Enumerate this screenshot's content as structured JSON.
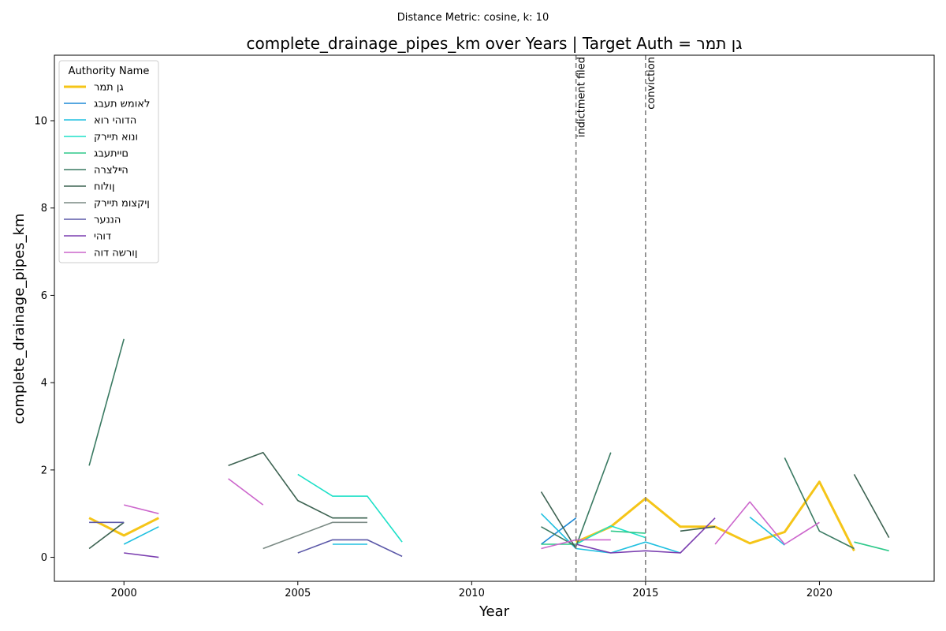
{
  "suptitle": "Distance Metric: cosine, k: 10",
  "title": "complete_drainage_pipes_km over Years | Target Auth = גן תמר",
  "chart_data": {
    "type": "line",
    "xlabel": "Year",
    "ylabel": "complete_drainage_pipes_km",
    "xlim": [
      1998.0,
      2023.3
    ],
    "ylim": [
      -0.55,
      11.5
    ],
    "xticks": [
      2000,
      2005,
      2010,
      2015,
      2020
    ],
    "yticks": [
      0,
      2,
      4,
      6,
      8,
      10
    ],
    "grid": false,
    "legend": {
      "title": "Authority Name",
      "placement": "top-left"
    },
    "events": [
      {
        "x": 2013,
        "label": "indictment filed"
      },
      {
        "x": 2015,
        "label": "conviction"
      }
    ],
    "series": [
      {
        "name": "גן תמר",
        "color": "#f5c518",
        "width": 3,
        "points": [
          [
            1999,
            0.9
          ],
          [
            2000,
            0.5
          ],
          [
            2001,
            0.9
          ],
          null,
          [
            2013,
            0.35
          ],
          [
            2014,
            0.7
          ],
          [
            2015,
            1.35
          ],
          [
            2016,
            0.7
          ],
          [
            2017,
            0.7
          ],
          [
            2018,
            0.32
          ],
          [
            2019,
            0.58
          ],
          [
            2020,
            1.73
          ],
          [
            2021,
            0.15
          ]
        ]
      },
      {
        "name": "לאומש תעבג",
        "color": "#1f8ad6",
        "width": 1.6,
        "points": [
          [
            2012,
            0.3
          ],
          [
            2013,
            0.9
          ]
        ]
      },
      {
        "name": "הדוהי רוא",
        "color": "#20c0e0",
        "width": 1.6,
        "points": [
          [
            2000,
            0.3
          ],
          [
            2001,
            0.7
          ],
          null,
          [
            2006,
            0.3
          ],
          [
            2007,
            0.3
          ],
          null,
          [
            2012,
            1.0
          ],
          [
            2013,
            0.2
          ],
          [
            2014,
            0.1
          ],
          [
            2015,
            0.35
          ],
          [
            2016,
            0.1
          ],
          null,
          [
            2018,
            0.92
          ],
          [
            2019,
            0.28
          ]
        ]
      },
      {
        "name": "ונוא תיירק",
        "color": "#1fe0c8",
        "width": 1.6,
        "points": [
          [
            2005,
            1.9
          ],
          [
            2006,
            1.4
          ],
          [
            2007,
            1.4
          ],
          [
            2008,
            0.35
          ],
          null,
          [
            2013,
            0.3
          ],
          [
            2014,
            0.72
          ],
          [
            2015,
            0.45
          ]
        ]
      },
      {
        "name": "םייתעבג",
        "color": "#2ec98a",
        "width": 1.6,
        "points": [
          [
            2012,
            0.3
          ],
          [
            2013,
            0.3
          ],
          null,
          [
            2014,
            0.6
          ],
          [
            2015,
            0.55
          ],
          null,
          [
            2021,
            0.35
          ],
          [
            2022,
            0.15
          ]
        ]
      },
      {
        "name": "הײלצרה",
        "color": "#3a7a62",
        "width": 1.6,
        "points": [
          [
            1999,
            2.1
          ],
          [
            2000,
            5.0
          ],
          null,
          [
            2012,
            0.7
          ],
          [
            2013,
            0.25
          ],
          [
            2014,
            2.4
          ],
          null,
          [
            2019,
            2.28
          ],
          [
            2020,
            0.6
          ],
          [
            2021,
            0.2
          ]
        ]
      },
      {
        "name": "ןולוח",
        "color": "#3d6352",
        "width": 1.6,
        "points": [
          [
            1999,
            0.2
          ],
          [
            2000,
            0.8
          ],
          null,
          [
            2003,
            2.1
          ],
          [
            2004,
            2.4
          ],
          [
            2005,
            1.3
          ],
          [
            2006,
            0.9
          ],
          [
            2007,
            0.9
          ],
          null,
          [
            2012,
            1.5
          ],
          [
            2013,
            0.2
          ],
          null,
          [
            2016,
            0.6
          ],
          [
            2017,
            0.7
          ],
          null,
          [
            2021,
            1.9
          ],
          [
            2022,
            0.45
          ]
        ]
      },
      {
        "name": "ןיקצומ תיירק",
        "color": "#7a8a84",
        "width": 1.6,
        "points": [
          [
            2004,
            0.2
          ],
          [
            2005,
            0.5
          ],
          [
            2006,
            0.8
          ],
          [
            2007,
            0.8
          ]
        ]
      },
      {
        "name": "הננער",
        "color": "#5b58a8",
        "width": 1.6,
        "points": [
          [
            1999,
            0.8
          ],
          [
            2000,
            0.8
          ],
          null,
          [
            2005,
            0.1
          ],
          [
            2006,
            0.4
          ],
          [
            2007,
            0.4
          ],
          [
            2008,
            0.02
          ]
        ]
      },
      {
        "name": "דוהי",
        "color": "#7b3fb0",
        "width": 1.6,
        "points": [
          [
            2000,
            0.1
          ],
          [
            2001,
            0.0
          ],
          null,
          [
            2013,
            0.3
          ],
          [
            2014,
            0.1
          ],
          [
            2015,
            0.15
          ],
          [
            2016,
            0.1
          ],
          [
            2017,
            0.9
          ]
        ]
      },
      {
        "name": "ןורשה דוה",
        "color": "#cc66cc",
        "width": 1.6,
        "points": [
          [
            2000,
            1.2
          ],
          [
            2001,
            1.0
          ],
          null,
          [
            2003,
            1.8
          ],
          [
            2004,
            1.2
          ],
          null,
          [
            2012,
            0.2
          ],
          [
            2013,
            0.4
          ],
          [
            2014,
            0.4
          ],
          null,
          [
            2017,
            0.3
          ],
          [
            2018,
            1.27
          ],
          [
            2019,
            0.3
          ],
          [
            2020,
            0.8
          ]
        ]
      }
    ]
  }
}
